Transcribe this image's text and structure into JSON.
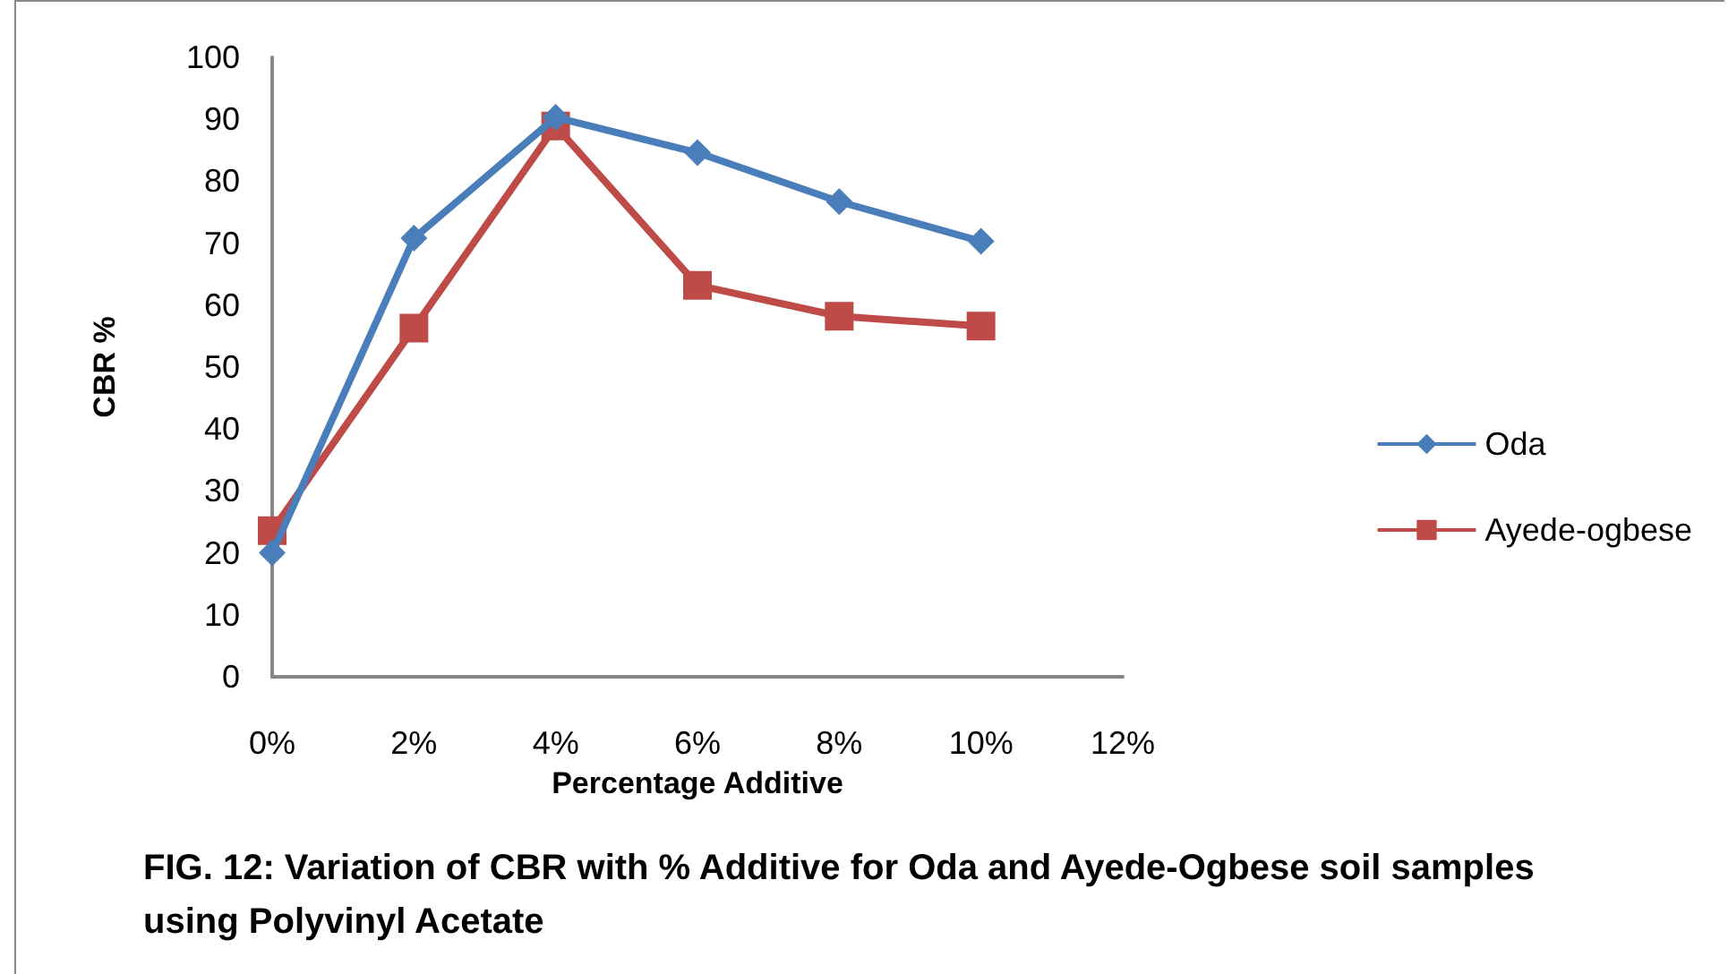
{
  "chart_data": {
    "type": "line",
    "title": "FIG. 12: Variation of CBR with % Additive for Oda and Ayede-Ogbese soil samples using Polyvinyl Acetate",
    "xlabel": "Percentage Additive",
    "ylabel": "CBR %",
    "categories": [
      "0%",
      "2%",
      "4%",
      "6%",
      "8%",
      "10%",
      "12%"
    ],
    "series": [
      {
        "name": "Oda",
        "color": "#4a7ebb",
        "marker": "diamond",
        "values": [
          20,
          70.8,
          90.3,
          84.6,
          76.7,
          70.3,
          null
        ]
      },
      {
        "name": "Ayede-ogbese",
        "color": "#be4b48",
        "marker": "square",
        "values": [
          23.6,
          56.3,
          88.9,
          63.2,
          58.2,
          56.6,
          null
        ]
      }
    ],
    "ylim": [
      0,
      100
    ],
    "yticks": [
      0,
      10,
      20,
      30,
      40,
      50,
      60,
      70,
      80,
      90,
      100
    ],
    "grid": false,
    "legend": "right"
  }
}
